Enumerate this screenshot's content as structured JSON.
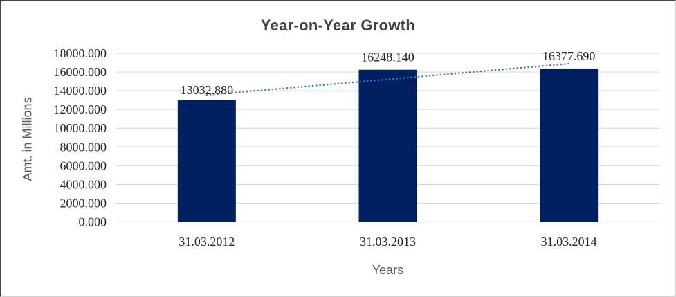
{
  "chart": {
    "title": "Year-on-Year Growth",
    "y_axis_title": "Amt. in Millions",
    "x_axis_title": "Years"
  },
  "chart_data": {
    "type": "bar",
    "title": "Year-on-Year Growth",
    "xlabel": "Years",
    "ylabel": "Amt. in Millions",
    "categories": [
      "31.03.2012",
      "31.03.2013",
      "31.03.2014"
    ],
    "series": [
      {
        "name": "Amt. in Millions",
        "values": [
          13032.88,
          16248.14,
          16377.69
        ]
      }
    ],
    "data_labels": [
      "13032.880",
      "16248.140",
      "16377.690"
    ],
    "ytick_labels": [
      "0.000",
      "2000.000",
      "4000.000",
      "6000.000",
      "8000.000",
      "10000.000",
      "12000.000",
      "14000.000",
      "16000.000",
      "18000.000"
    ],
    "ylim": [
      0,
      18000
    ],
    "ytick_step": 2000,
    "grid": true,
    "legend": "none",
    "trendline": {
      "type": "linear",
      "style": "dotted",
      "color": "#4472C4",
      "start_value": 13547.2,
      "end_value": 16892.0
    },
    "colors": {
      "bar": "#002060",
      "gridline": "#D9D9D9",
      "axis_line": "#D9D9D9",
      "number_text": "#262626",
      "axis_title_text": "#595959",
      "title_text": "#404040"
    }
  }
}
